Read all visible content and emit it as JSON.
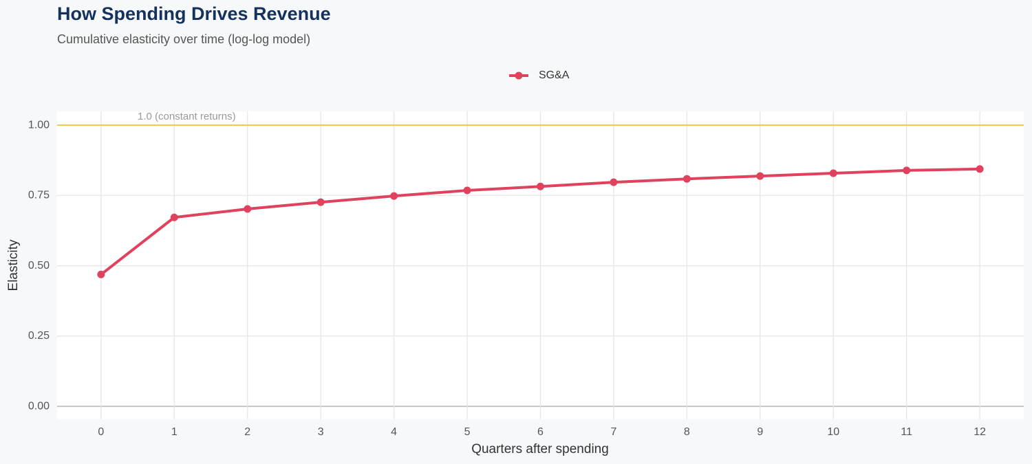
{
  "chart_data": {
    "type": "line",
    "title": "How Spending Drives Revenue",
    "subtitle": "Cumulative elasticity over time (log-log model)",
    "x_label": "Quarters after spending",
    "y_label": "Elasticity",
    "x": [
      0,
      1,
      2,
      3,
      4,
      5,
      6,
      7,
      8,
      9,
      10,
      11,
      12
    ],
    "series": [
      {
        "name": "SG&A",
        "color": "#e0425e",
        "values": [
          0.469,
          0.672,
          0.702,
          0.726,
          0.748,
          0.768,
          0.782,
          0.797,
          0.809,
          0.819,
          0.829,
          0.839,
          0.844
        ]
      }
    ],
    "xlim": [
      -0.6,
      12.6
    ],
    "ylim": [
      -0.046,
      1.049
    ],
    "xticks": [
      0,
      1,
      2,
      3,
      4,
      5,
      6,
      7,
      8,
      9,
      10,
      11,
      12
    ],
    "yticks": [
      {
        "value": 0,
        "label": "0.00"
      },
      {
        "value": 0.25,
        "label": "0.25"
      },
      {
        "value": 0.5,
        "label": "0.50"
      },
      {
        "value": 0.75,
        "label": "0.75"
      },
      {
        "value": 1,
        "label": "1.00"
      }
    ],
    "reference_line": {
      "value": 1,
      "label": "1.0 (constant returns)",
      "color": "#f2c94c"
    },
    "grid": true,
    "legend": "top"
  }
}
